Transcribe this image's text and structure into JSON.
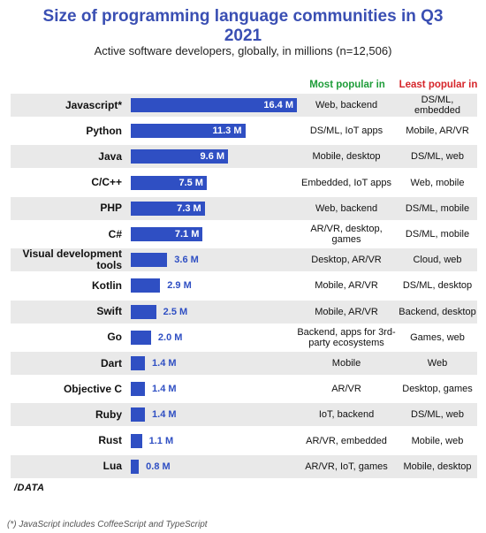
{
  "header": {
    "title_line1": "Size of programming language communities in Q3",
    "title_line2": "2021",
    "subtitle": "Active software developers, globally, in millions (n=12,506)"
  },
  "columns": {
    "most_popular": "Most popular in",
    "least_popular": "Least popular in"
  },
  "colors": {
    "bar": "#2f4fc3",
    "most_popular": "#1f9d3a",
    "least_popular": "#d6252a",
    "title": "#3a4fb3",
    "band": "#e9e9e9"
  },
  "chart_data": {
    "type": "bar",
    "orientation": "horizontal",
    "value_unit": "M",
    "categories": [
      "Javascript*",
      "Python",
      "Java",
      "C/C++",
      "PHP",
      "C#",
      "Visual development tools",
      "Kotlin",
      "Swift",
      "Go",
      "Dart",
      "Objective C",
      "Ruby",
      "Rust",
      "Lua"
    ],
    "values": [
      16.4,
      11.3,
      9.6,
      7.5,
      7.3,
      7.1,
      3.6,
      2.9,
      2.5,
      2.0,
      1.4,
      1.4,
      1.4,
      1.1,
      0.8
    ],
    "value_labels": [
      "16.4 M",
      "11.3 M",
      "9.6 M",
      "7.5 M",
      "7.3 M",
      "7.1 M",
      "3.6 M",
      "2.9 M",
      "2.5 M",
      "2.0 M",
      "1.4 M",
      "1.4 M",
      "1.4 M",
      "1.1 M",
      "0.8 M"
    ]
  },
  "rows": [
    {
      "most": "Web, backend",
      "least": "DS/ML, embedded"
    },
    {
      "most": "DS/ML, IoT apps",
      "least": "Mobile, AR/VR"
    },
    {
      "most": "Mobile, desktop",
      "least": "DS/ML, web"
    },
    {
      "most": "Embedded, IoT apps",
      "least": "Web, mobile"
    },
    {
      "most": "Web, backend",
      "least": "DS/ML, mobile"
    },
    {
      "most": "AR/VR, desktop, games",
      "least": "DS/ML, mobile"
    },
    {
      "most": "Desktop, AR/VR",
      "least": "Cloud, web"
    },
    {
      "most": "Mobile, AR/VR",
      "least": "DS/ML, desktop"
    },
    {
      "most": "Mobile, AR/VR",
      "least": "Backend, desktop"
    },
    {
      "most": "Backend, apps for 3rd-party ecosystems",
      "least": "Games, web"
    },
    {
      "most": "Mobile",
      "least": "Web"
    },
    {
      "most": "AR/VR",
      "least": "Desktop, games"
    },
    {
      "most": "IoT, backend",
      "least": "DS/ML, web"
    },
    {
      "most": "AR/VR, embedded",
      "least": "Mobile, web"
    },
    {
      "most": "AR/VR, IoT, games",
      "least": "Mobile, desktop"
    }
  ],
  "logo": "/DATA",
  "footnote": "(*) JavaScript includes CoffeeScript and TypeScript"
}
